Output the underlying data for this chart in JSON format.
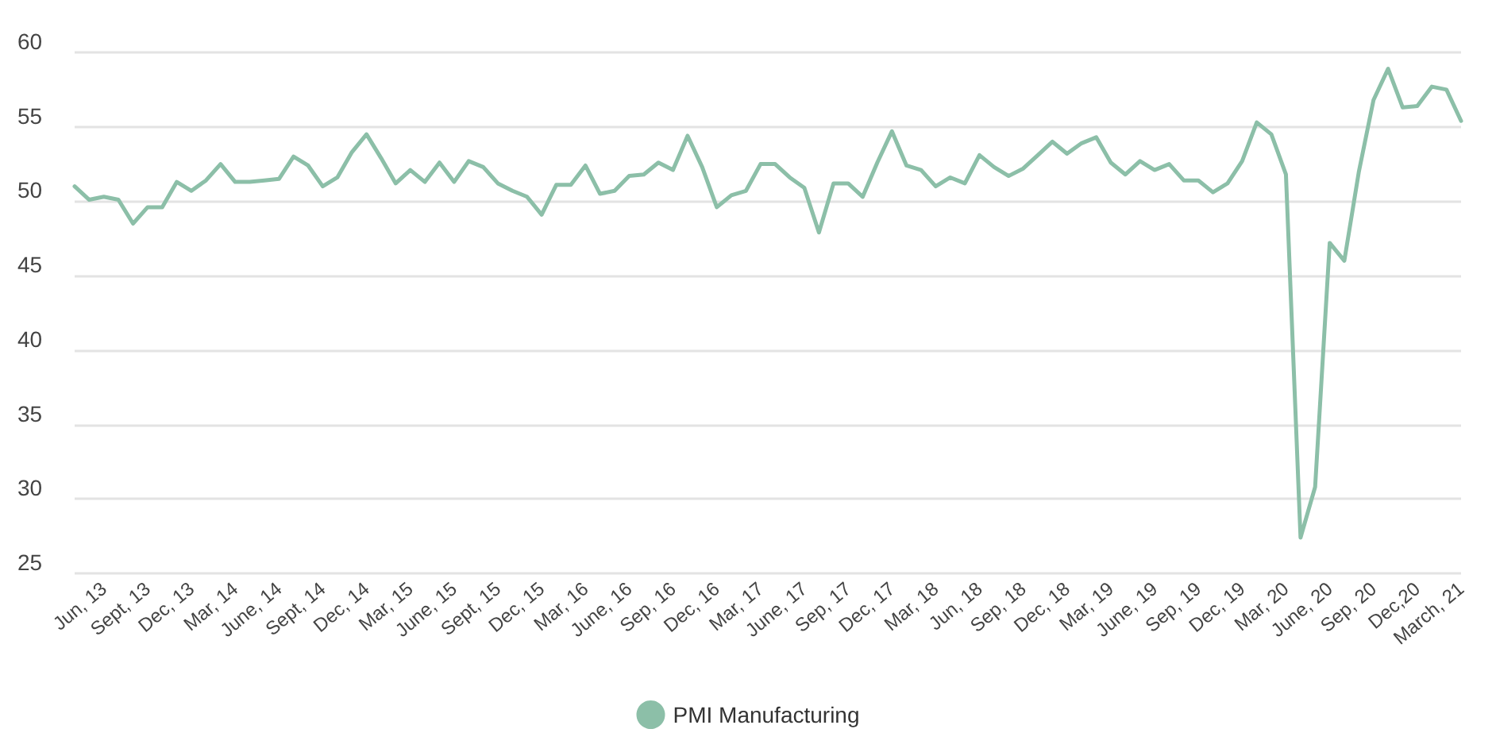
{
  "chart_data": {
    "type": "line",
    "categories": [
      null,
      null,
      "Jun, 13",
      null,
      null,
      "Sept, 13",
      null,
      null,
      "Dec, 13",
      null,
      null,
      "Mar, 14",
      null,
      null,
      "June, 14",
      null,
      null,
      "Sept, 14",
      null,
      null,
      "Dec, 14",
      null,
      null,
      "Mar, 15",
      null,
      null,
      "June, 15",
      null,
      null,
      "Sept, 15",
      null,
      null,
      "Dec, 15",
      null,
      null,
      "Mar, 16",
      null,
      null,
      "June, 16",
      null,
      null,
      "Sep, 16",
      null,
      null,
      "Dec, 16",
      null,
      null,
      "Mar, 17",
      null,
      null,
      "June, 17",
      null,
      null,
      "Sep, 17",
      null,
      null,
      "Dec, 17",
      null,
      null,
      "Mar, 18",
      null,
      null,
      "Jun, 18",
      null,
      null,
      "Sep, 18",
      null,
      null,
      "Dec, 18",
      null,
      null,
      "Mar, 19",
      null,
      null,
      "June, 19",
      null,
      null,
      "Sep, 19",
      null,
      null,
      "Dec, 19",
      null,
      null,
      "Mar, 20",
      null,
      null,
      "June, 20",
      null,
      null,
      "Sep, 20",
      null,
      null,
      "Dec,20",
      null,
      null,
      "March, 21"
    ],
    "series": [
      {
        "name": "PMI Manufacturing",
        "color": "#8cbfa8",
        "values": [
          51.0,
          50.1,
          50.3,
          50.1,
          48.5,
          49.6,
          49.6,
          51.3,
          50.7,
          51.4,
          52.5,
          51.3,
          51.3,
          51.4,
          51.5,
          53.0,
          52.4,
          51.0,
          51.6,
          53.3,
          54.5,
          52.9,
          51.2,
          52.1,
          51.3,
          52.6,
          51.3,
          52.7,
          52.3,
          51.2,
          50.7,
          50.3,
          49.1,
          51.1,
          51.1,
          52.4,
          50.5,
          50.7,
          51.7,
          51.8,
          52.6,
          52.1,
          54.4,
          52.3,
          49.6,
          50.4,
          50.7,
          52.5,
          52.5,
          51.6,
          50.9,
          47.9,
          51.2,
          51.2,
          50.3,
          52.6,
          54.7,
          52.4,
          52.1,
          51.0,
          51.6,
          51.2,
          53.1,
          52.3,
          51.7,
          52.2,
          53.1,
          54.0,
          53.2,
          53.9,
          54.3,
          52.6,
          51.8,
          52.7,
          52.1,
          52.5,
          51.4,
          51.4,
          50.6,
          51.2,
          52.7,
          55.3,
          54.5,
          51.8,
          27.4,
          30.8,
          47.2,
          46.0,
          52.0,
          56.8,
          58.9,
          56.3,
          56.4,
          57.7,
          57.5,
          55.4
        ]
      }
    ],
    "ylim": [
      25,
      60
    ],
    "yticks": [
      25,
      30,
      35,
      40,
      45,
      50,
      55,
      60
    ],
    "grid": "y",
    "legend": "bottom",
    "marker": "none",
    "line_style": "solid"
  }
}
